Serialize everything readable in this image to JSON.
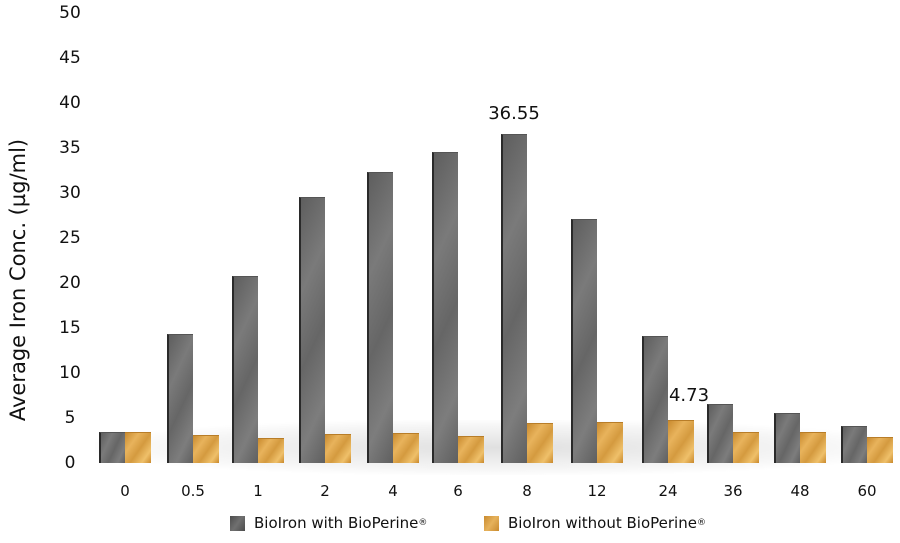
{
  "chart_data": {
    "type": "bar",
    "title": "",
    "xlabel": "",
    "ylabel": "Average Iron Conc. (µg/ml)",
    "ylim": [
      0,
      50
    ],
    "yticks": [
      "0",
      "5",
      "10",
      "15",
      "20",
      "25",
      "30",
      "35",
      "40",
      "45",
      "50"
    ],
    "categories": [
      "0",
      "0.5",
      "1",
      "2",
      "4",
      "6",
      "8",
      "12",
      "24",
      "36",
      "48",
      "60"
    ],
    "series": [
      {
        "name": "BioIron with BioPerine®",
        "color": "#6b6b6b",
        "values": [
          3.4,
          14.3,
          20.8,
          29.6,
          32.3,
          34.6,
          36.55,
          27.1,
          14.1,
          6.6,
          5.6,
          4.1
        ]
      },
      {
        "name": "BioIron without BioPerine®",
        "color": "#d9a045",
        "values": [
          3.4,
          3.1,
          2.8,
          3.2,
          3.3,
          3.0,
          4.4,
          4.6,
          4.73,
          3.4,
          3.4,
          2.9
        ]
      }
    ],
    "annotations": [
      {
        "text": "36.55",
        "series": 0,
        "category": "8"
      },
      {
        "text": "4.73",
        "series": 1,
        "category": "24"
      }
    ],
    "grid": false,
    "legend_position": "bottom"
  },
  "legend": {
    "items": [
      {
        "label": "BioIron with BioPerine",
        "mark": "®",
        "swatch": "gray-textured"
      },
      {
        "label": "BioIron without BioPerine",
        "mark": "®",
        "swatch": "orange-textured"
      }
    ]
  }
}
